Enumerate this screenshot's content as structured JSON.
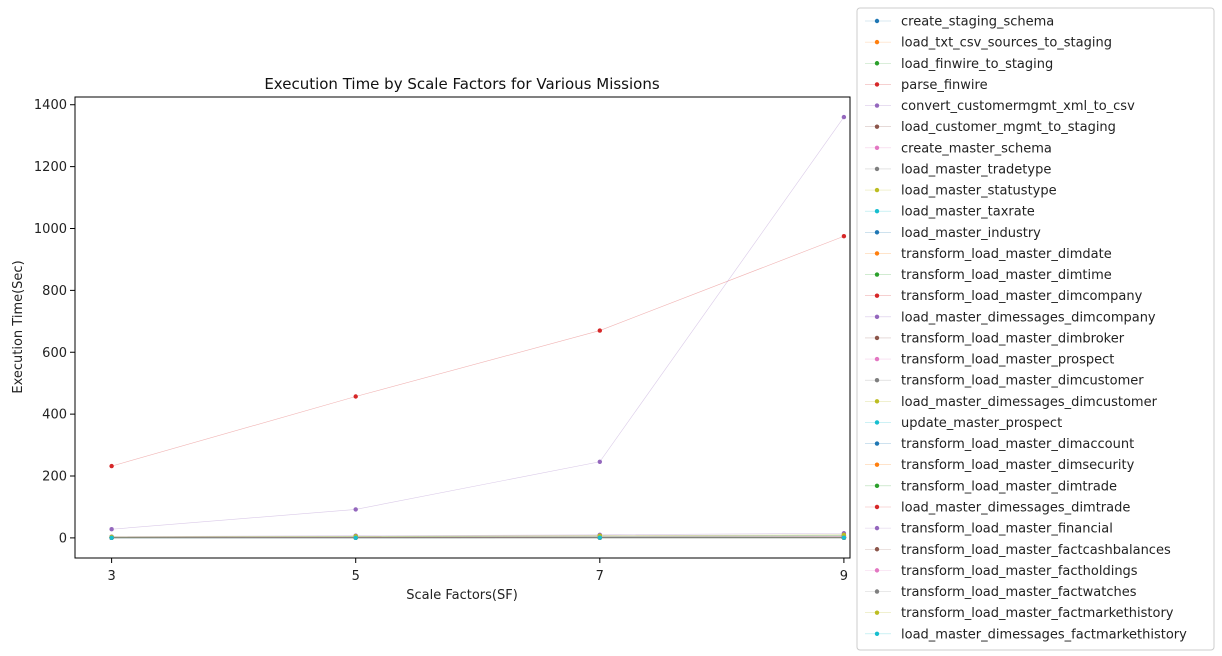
{
  "chart_data": {
    "type": "line",
    "title": "Execution Time by Scale Factors for Various Missions",
    "xlabel": "Scale Factors(SF)",
    "ylabel": "Execution Time(Sec)",
    "x": [
      3,
      5,
      7,
      9
    ],
    "x_ticks": [
      "3",
      "5",
      "7",
      "9"
    ],
    "y_ticks": [
      "0",
      "200",
      "400",
      "600",
      "800",
      "1000",
      "1200",
      "1400"
    ],
    "xlim": [
      2.7,
      9.05
    ],
    "ylim": [
      -65,
      1425
    ],
    "grid": false,
    "legend_position": "right, outside plot",
    "series": [
      {
        "name": "create_staging_schema",
        "color": "#1f77b4",
        "values": [
          0.2,
          0.2,
          0.2,
          0.2
        ]
      },
      {
        "name": "load_txt_csv_sources_to_staging",
        "color": "#ff7f0e",
        "values": [
          1,
          1.5,
          2,
          2.5
        ]
      },
      {
        "name": "load_finwire_to_staging",
        "color": "#2ca02c",
        "values": [
          1,
          1.5,
          2,
          2.5
        ]
      },
      {
        "name": "parse_finwire",
        "color": "#d62728",
        "values": [
          232,
          457,
          670,
          975
        ]
      },
      {
        "name": "convert_customermgmt_xml_to_csv",
        "color": "#9467bd",
        "values": [
          28,
          92,
          246,
          1360
        ]
      },
      {
        "name": "load_customer_mgmt_to_staging",
        "color": "#8c564b",
        "values": [
          0.5,
          0.5,
          0.5,
          0.5
        ]
      },
      {
        "name": "create_master_schema",
        "color": "#e377c2",
        "values": [
          0.2,
          0.2,
          0.2,
          0.2
        ]
      },
      {
        "name": "load_master_tradetype",
        "color": "#7f7f7f",
        "values": [
          0.1,
          0.1,
          0.1,
          0.1
        ]
      },
      {
        "name": "load_master_statustype",
        "color": "#bcbd22",
        "values": [
          0.1,
          0.1,
          0.1,
          0.1
        ]
      },
      {
        "name": "load_master_taxrate",
        "color": "#17becf",
        "values": [
          0.1,
          0.1,
          0.1,
          0.1
        ]
      },
      {
        "name": "load_master_industry",
        "color": "#1f77b4",
        "values": [
          0.1,
          0.1,
          0.1,
          0.1
        ]
      },
      {
        "name": "transform_load_master_dimdate",
        "color": "#ff7f0e",
        "values": [
          0.5,
          0.5,
          0.5,
          0.5
        ]
      },
      {
        "name": "transform_load_master_dimtime",
        "color": "#2ca02c",
        "values": [
          0.5,
          0.5,
          0.5,
          0.5
        ]
      },
      {
        "name": "transform_load_master_dimcompany",
        "color": "#d62728",
        "values": [
          0.5,
          0.6,
          0.7,
          0.8
        ]
      },
      {
        "name": "load_master_dimessages_dimcompany",
        "color": "#9467bd",
        "values": [
          0.2,
          0.2,
          0.2,
          0.2
        ]
      },
      {
        "name": "transform_load_master_dimbroker",
        "color": "#8c564b",
        "values": [
          0.2,
          0.2,
          0.2,
          0.2
        ]
      },
      {
        "name": "transform_load_master_prospect",
        "color": "#e377c2",
        "values": [
          0.5,
          0.8,
          1,
          1.2
        ]
      },
      {
        "name": "transform_load_master_dimcustomer",
        "color": "#7f7f7f",
        "values": [
          1,
          1.5,
          2,
          3
        ]
      },
      {
        "name": "load_master_dimessages_dimcustomer",
        "color": "#bcbd22",
        "values": [
          0.2,
          0.2,
          0.2,
          0.2
        ]
      },
      {
        "name": "update_master_prospect",
        "color": "#17becf",
        "values": [
          0.3,
          0.4,
          0.5,
          0.6
        ]
      },
      {
        "name": "transform_load_master_dimaccount",
        "color": "#1f77b4",
        "values": [
          1,
          1.5,
          2,
          3
        ]
      },
      {
        "name": "transform_load_master_dimsecurity",
        "color": "#ff7f0e",
        "values": [
          0.5,
          0.6,
          0.7,
          0.8
        ]
      },
      {
        "name": "transform_load_master_dimtrade",
        "color": "#2ca02c",
        "values": [
          2,
          3,
          5,
          7
        ]
      },
      {
        "name": "load_master_dimessages_dimtrade",
        "color": "#d62728",
        "values": [
          0.3,
          0.4,
          0.5,
          0.6
        ]
      },
      {
        "name": "transform_load_master_financial",
        "color": "#9467bd",
        "values": [
          4,
          7,
          10,
          15
        ]
      },
      {
        "name": "transform_load_master_factcashbalances",
        "color": "#8c564b",
        "values": [
          1,
          2,
          3,
          4
        ]
      },
      {
        "name": "transform_load_master_factholdings",
        "color": "#e377c2",
        "values": [
          1,
          2,
          3,
          4
        ]
      },
      {
        "name": "transform_load_master_factwatches",
        "color": "#7f7f7f",
        "values": [
          3,
          5,
          7,
          9
        ]
      },
      {
        "name": "transform_load_master_factmarkethistory",
        "color": "#bcbd22",
        "values": [
          3,
          5,
          7,
          10
        ]
      },
      {
        "name": "load_master_dimessages_factmarkethistory",
        "color": "#17becf",
        "values": [
          0.3,
          0.4,
          0.5,
          0.6
        ]
      }
    ]
  }
}
